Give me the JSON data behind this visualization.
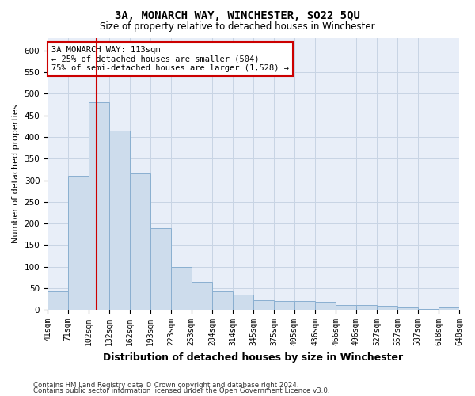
{
  "title": "3A, MONARCH WAY, WINCHESTER, SO22 5QU",
  "subtitle": "Size of property relative to detached houses in Winchester",
  "xlabel": "Distribution of detached houses by size in Winchester",
  "ylabel": "Number of detached properties",
  "footnote1": "Contains HM Land Registry data © Crown copyright and database right 2024.",
  "footnote2": "Contains public sector information licensed under the Open Government Licence v3.0.",
  "annotation_line1": "3A MONARCH WAY: 113sqm",
  "annotation_line2": "← 25% of detached houses are smaller (504)",
  "annotation_line3": "75% of semi-detached houses are larger (1,528) →",
  "bar_color": "#cddcec",
  "bar_edge_color": "#8aafd0",
  "redline_color": "#cc0000",
  "annotation_box_color": "#cc0000",
  "grid_color": "#c8d4e4",
  "background_color": "#e8eef8",
  "bins": [
    41,
    71,
    102,
    132,
    162,
    193,
    223,
    253,
    284,
    314,
    345,
    375,
    405,
    436,
    466,
    496,
    527,
    557,
    587,
    618,
    648
  ],
  "values": [
    43,
    310,
    480,
    415,
    315,
    190,
    100,
    65,
    43,
    35,
    22,
    20,
    20,
    18,
    12,
    12,
    10,
    5,
    3,
    5
  ],
  "property_size": 113,
  "ylim": [
    0,
    630
  ],
  "yticks": [
    0,
    50,
    100,
    150,
    200,
    250,
    300,
    350,
    400,
    450,
    500,
    550,
    600
  ]
}
